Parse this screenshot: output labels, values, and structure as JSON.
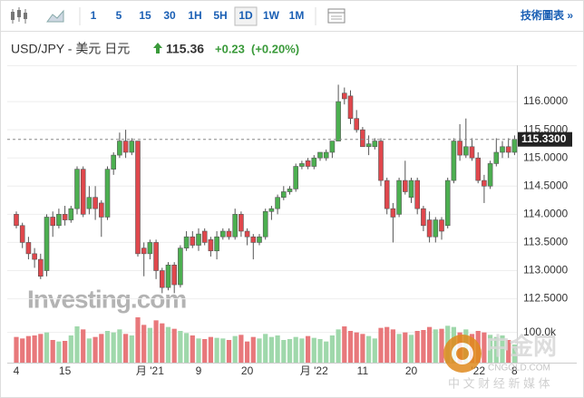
{
  "toolbar": {
    "intervals": [
      "1",
      "5",
      "15",
      "30",
      "1H",
      "5H",
      "1D",
      "1W",
      "1M"
    ],
    "selected": 6,
    "tools": "技術圖表 »"
  },
  "quote": {
    "pair": "USD/JPY - 美元 日元",
    "price": "115.36",
    "change": "+0.23",
    "change_pct": "(+0.20%)"
  },
  "watermarks": {
    "brand": "Investing.com",
    "logo": "中金网",
    "site": "CNGOLD.COM",
    "slogan": "中 文 财 经 新 媒 体"
  },
  "chart_data": {
    "type": "candlestick",
    "categories": [
      "4",
      null,
      null,
      null,
      null,
      null,
      null,
      null,
      "15",
      null,
      null,
      null,
      null,
      null,
      null,
      null,
      null,
      null,
      null,
      null,
      null,
      null,
      "月 '21",
      null,
      null,
      null,
      null,
      null,
      null,
      null,
      "9",
      null,
      null,
      null,
      null,
      null,
      null,
      null,
      "20",
      null,
      null,
      null,
      null,
      null,
      null,
      null,
      null,
      null,
      null,
      "月 '22",
      null,
      null,
      null,
      null,
      null,
      null,
      null,
      "11",
      null,
      null,
      null,
      null,
      null,
      null,
      null,
      "20",
      null,
      null,
      null,
      null,
      null,
      null,
      null,
      null,
      null,
      null,
      "'22",
      null,
      null,
      null,
      null,
      null,
      "8"
    ],
    "open": [
      114.0,
      113.8,
      113.5,
      113.3,
      113.2,
      113.0,
      113.95,
      113.8,
      114.0,
      113.9,
      114.1,
      114.8,
      114.1,
      114.3,
      114.2,
      113.95,
      114.8,
      115.05,
      115.3,
      115.1,
      115.3,
      113.4,
      113.3,
      113.5,
      113.0,
      112.7,
      113.1,
      112.75,
      113.4,
      113.6,
      113.45,
      113.7,
      113.55,
      113.35,
      113.6,
      113.7,
      113.6,
      114.0,
      113.7,
      113.6,
      113.5,
      113.6,
      114.05,
      114.1,
      114.3,
      114.4,
      114.45,
      114.85,
      114.95,
      114.85,
      115.0,
      115.0,
      115.1,
      115.3,
      116.15,
      116.1,
      115.7,
      115.5,
      115.2,
      115.2,
      115.3,
      114.6,
      114.1,
      114.0,
      114.6,
      114.3,
      114.6,
      114.1,
      113.9,
      113.6,
      113.9,
      113.8,
      114.6,
      115.3,
      115.05,
      115.2,
      115.0,
      114.6,
      114.5,
      114.9,
      115.1,
      115.2,
      115.1
    ],
    "high": [
      114.05,
      113.85,
      113.6,
      113.4,
      113.3,
      114.0,
      114.05,
      114.1,
      114.15,
      114.15,
      114.85,
      114.85,
      114.5,
      114.5,
      114.25,
      114.85,
      115.1,
      115.45,
      115.5,
      115.35,
      115.3,
      113.5,
      113.55,
      113.55,
      113.05,
      113.15,
      113.15,
      113.45,
      113.7,
      113.7,
      113.75,
      113.75,
      113.6,
      113.7,
      113.75,
      113.75,
      114.1,
      114.05,
      113.75,
      113.65,
      113.65,
      114.1,
      114.15,
      114.35,
      114.5,
      114.5,
      114.9,
      114.95,
      115.0,
      115.05,
      115.1,
      115.15,
      115.3,
      116.3,
      116.25,
      116.2,
      115.85,
      115.55,
      115.4,
      115.35,
      115.35,
      114.65,
      114.2,
      114.65,
      114.95,
      114.65,
      114.65,
      114.15,
      114.05,
      113.95,
      113.95,
      114.65,
      115.35,
      115.6,
      115.7,
      115.35,
      115.1,
      114.7,
      114.95,
      115.35,
      115.3,
      115.35,
      115.4
    ],
    "low": [
      113.75,
      113.4,
      113.2,
      113.05,
      112.85,
      112.9,
      113.6,
      113.75,
      113.8,
      113.85,
      114.0,
      113.95,
      114.0,
      113.9,
      113.6,
      113.9,
      114.7,
      115.0,
      115.0,
      115.05,
      113.25,
      112.9,
      113.2,
      112.85,
      112.6,
      112.65,
      112.6,
      112.7,
      113.35,
      113.4,
      113.35,
      113.45,
      113.25,
      113.2,
      113.55,
      113.55,
      113.55,
      113.6,
      113.45,
      113.2,
      113.45,
      113.55,
      113.9,
      114.0,
      114.25,
      114.35,
      114.4,
      114.8,
      114.8,
      114.8,
      114.95,
      114.95,
      115.0,
      115.3,
      115.95,
      115.6,
      115.45,
      115.2,
      115.05,
      115.15,
      114.5,
      114.0,
      113.5,
      113.95,
      114.35,
      114.2,
      114.0,
      113.7,
      113.5,
      113.5,
      113.55,
      113.75,
      114.55,
      114.95,
      115.0,
      114.95,
      114.55,
      114.2,
      114.45,
      114.85,
      115.0,
      115.0,
      115.05
    ],
    "close": [
      113.8,
      113.5,
      113.3,
      113.2,
      112.9,
      113.95,
      113.8,
      114.0,
      113.9,
      114.1,
      114.8,
      114.0,
      114.3,
      114.1,
      113.95,
      114.8,
      115.05,
      115.3,
      115.1,
      115.3,
      113.3,
      113.3,
      113.5,
      113.0,
      112.7,
      113.1,
      112.75,
      113.4,
      113.6,
      113.45,
      113.65,
      113.5,
      113.35,
      113.6,
      113.7,
      113.6,
      114.0,
      113.7,
      113.6,
      113.5,
      113.6,
      114.05,
      114.1,
      114.3,
      114.4,
      114.45,
      114.85,
      114.9,
      114.85,
      115.0,
      115.1,
      115.1,
      115.3,
      116.0,
      116.05,
      115.7,
      115.5,
      115.2,
      115.25,
      115.3,
      114.6,
      114.1,
      113.95,
      114.6,
      114.4,
      114.6,
      114.1,
      113.8,
      113.6,
      113.9,
      113.7,
      114.6,
      115.3,
      115.05,
      115.2,
      115.0,
      114.6,
      114.5,
      114.9,
      115.1,
      115.2,
      115.1,
      115.33
    ],
    "volume": [
      85,
      80,
      88,
      90,
      95,
      100,
      75,
      70,
      72,
      90,
      120,
      110,
      80,
      85,
      95,
      105,
      100,
      110,
      95,
      90,
      150,
      125,
      115,
      140,
      130,
      118,
      112,
      105,
      98,
      90,
      80,
      78,
      85,
      82,
      80,
      75,
      88,
      92,
      70,
      85,
      80,
      95,
      85,
      90,
      75,
      78,
      85,
      80,
      88,
      82,
      78,
      70,
      90,
      110,
      120,
      105,
      100,
      95,
      88,
      80,
      115,
      118,
      110,
      95,
      100,
      92,
      105,
      108,
      118,
      110,
      112,
      122,
      118,
      100,
      110,
      95,
      105,
      100,
      92,
      85,
      90,
      75,
      60
    ],
    "up_color": "#4caf50",
    "down_color": "#e0474c",
    "volume_up_color": "#9fd8ab",
    "volume_down_color": "#e8787b",
    "ylim": [
      112.3,
      116.5
    ],
    "yticks": [
      {
        "value": 112.5,
        "label": "112.5000"
      },
      {
        "value": 113,
        "label": "113.0000"
      },
      {
        "value": 113.5,
        "label": "113.5000"
      },
      {
        "value": 114,
        "label": "114.0000"
      },
      {
        "value": 114.5,
        "label": "114.5000"
      },
      {
        "value": 115,
        "label": "115.0000"
      },
      {
        "value": 115.5,
        "label": "115.5000"
      },
      {
        "value": 116,
        "label": "116.0000"
      }
    ],
    "volume_ylim": [
      0,
      150
    ],
    "volume_yticks": [
      {
        "value": 100,
        "label": "100.0k"
      }
    ],
    "last": {
      "value": 115.33,
      "label": "115.3300"
    },
    "grid": true
  }
}
